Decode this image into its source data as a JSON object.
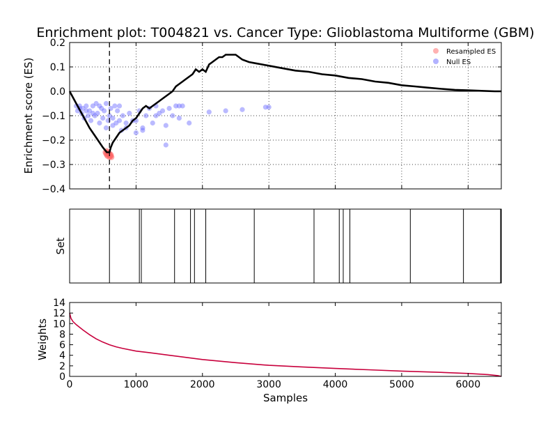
{
  "title": "Enrichment plot: T004821 vs. Cancer Type: Glioblastoma Multiforme (GBM)",
  "colors": {
    "running_es": "#000000",
    "resampled": "#ff6666",
    "null": "#6666ff",
    "weights": "#c8003c",
    "leading_edge": "#000000"
  },
  "chart_data": [
    {
      "type": "line",
      "panel": "enrichment",
      "ylabel": "Enrichment score (ES)",
      "xlim": [
        0,
        6500
      ],
      "ylim": [
        -0.4,
        0.2
      ],
      "yticks": [
        -0.4,
        -0.3,
        -0.2,
        -0.1,
        0.0,
        0.1,
        0.2
      ],
      "ytick_labels": [
        "−0.4",
        "−0.3",
        "−0.2",
        "−0.1",
        "0.0",
        "0.1",
        "0.2"
      ],
      "xticks": [
        1000,
        2000,
        3000,
        4000,
        5000,
        6000
      ],
      "grid": true,
      "leading_edge_x": 600,
      "legend": {
        "position": "top-right",
        "entries": [
          "Resampled ES",
          "Null ES"
        ]
      },
      "running_es": {
        "x": [
          0,
          100,
          200,
          300,
          400,
          500,
          560,
          600,
          620,
          650,
          700,
          750,
          800,
          850,
          900,
          950,
          1000,
          1050,
          1100,
          1150,
          1200,
          1250,
          1300,
          1350,
          1400,
          1450,
          1500,
          1550,
          1600,
          1650,
          1700,
          1750,
          1800,
          1850,
          1900,
          1950,
          2000,
          2050,
          2100,
          2150,
          2200,
          2250,
          2300,
          2350,
          2400,
          2450,
          2500,
          2600,
          2700,
          2800,
          2900,
          3000,
          3200,
          3400,
          3600,
          3800,
          4000,
          4200,
          4400,
          4600,
          4800,
          5000,
          5200,
          5400,
          5600,
          5800,
          6000,
          6200,
          6400,
          6500
        ],
        "y": [
          0.0,
          -0.05,
          -0.1,
          -0.15,
          -0.19,
          -0.23,
          -0.25,
          -0.25,
          -0.23,
          -0.21,
          -0.19,
          -0.17,
          -0.16,
          -0.15,
          -0.14,
          -0.12,
          -0.11,
          -0.09,
          -0.07,
          -0.06,
          -0.07,
          -0.06,
          -0.05,
          -0.04,
          -0.03,
          -0.02,
          -0.01,
          0.0,
          0.02,
          0.03,
          0.04,
          0.05,
          0.06,
          0.07,
          0.09,
          0.08,
          0.09,
          0.08,
          0.11,
          0.12,
          0.13,
          0.14,
          0.14,
          0.15,
          0.15,
          0.15,
          0.15,
          0.13,
          0.12,
          0.115,
          0.11,
          0.105,
          0.095,
          0.085,
          0.08,
          0.07,
          0.065,
          0.055,
          0.05,
          0.04,
          0.035,
          0.025,
          0.02,
          0.015,
          0.01,
          0.006,
          0.004,
          0.002,
          0.0,
          0.0
        ]
      },
      "resampled_es": {
        "x": [
          540,
          550,
          560,
          570,
          580,
          590,
          600,
          610,
          620,
          630,
          560,
          580,
          600,
          620
        ],
        "y": [
          -0.25,
          -0.255,
          -0.26,
          -0.265,
          -0.255,
          -0.26,
          -0.27,
          -0.265,
          -0.26,
          -0.27,
          -0.245,
          -0.25,
          -0.255,
          -0.265
        ]
      },
      "null_es": {
        "x": [
          100,
          120,
          150,
          180,
          200,
          220,
          250,
          280,
          300,
          320,
          350,
          380,
          400,
          420,
          450,
          480,
          500,
          520,
          550,
          580,
          600,
          620,
          650,
          680,
          700,
          720,
          750,
          780,
          800,
          850,
          900,
          950,
          1000,
          1050,
          1100,
          1150,
          1200,
          1250,
          1300,
          1350,
          1400,
          1450,
          1500,
          1550,
          1600,
          1650,
          1700,
          1800,
          2100,
          2350,
          2600,
          2950,
          3000,
          150,
          250,
          350,
          450,
          550,
          650,
          750,
          850,
          1000,
          1100,
          1300,
          1450,
          1650
        ],
        "y": [
          -0.06,
          -0.08,
          -0.06,
          -0.09,
          -0.07,
          -0.11,
          -0.06,
          -0.1,
          -0.08,
          -0.12,
          -0.06,
          -0.1,
          -0.05,
          -0.09,
          -0.13,
          -0.07,
          -0.11,
          -0.08,
          -0.05,
          -0.12,
          -0.1,
          -0.07,
          -0.14,
          -0.06,
          -0.13,
          -0.08,
          -0.12,
          -0.16,
          -0.1,
          -0.15,
          -0.09,
          -0.12,
          -0.17,
          -0.08,
          -0.15,
          -0.1,
          -0.07,
          -0.13,
          -0.06,
          -0.09,
          -0.08,
          -0.22,
          -0.07,
          -0.1,
          -0.06,
          -0.11,
          -0.06,
          -0.13,
          -0.085,
          -0.08,
          -0.075,
          -0.065,
          -0.065,
          -0.07,
          -0.08,
          -0.09,
          -0.06,
          -0.15,
          -0.11,
          -0.06,
          -0.13,
          -0.12,
          -0.16,
          -0.1,
          -0.14,
          -0.06
        ]
      }
    },
    {
      "type": "barcode",
      "panel": "set",
      "ylabel": "Set",
      "xlim": [
        0,
        6500
      ],
      "hits": [
        600,
        1050,
        1080,
        1580,
        1820,
        1880,
        2050,
        2780,
        3680,
        4060,
        4120,
        4220,
        5130,
        5930,
        6490
      ]
    },
    {
      "type": "line",
      "panel": "weights",
      "ylabel": "Weights",
      "xlabel": "Samples",
      "xlim": [
        0,
        6500
      ],
      "ylim": [
        0,
        14
      ],
      "yticks": [
        0,
        2,
        4,
        6,
        8,
        10,
        12,
        14
      ],
      "xticks": [
        0,
        1000,
        2000,
        3000,
        4000,
        5000,
        6000
      ],
      "x": [
        0,
        20,
        50,
        100,
        200,
        300,
        400,
        500,
        600,
        700,
        800,
        1000,
        1200,
        1500,
        2000,
        2500,
        3000,
        3500,
        4000,
        4500,
        5000,
        5500,
        6000,
        6300,
        6450,
        6500
      ],
      "y": [
        12.0,
        11.0,
        10.4,
        9.8,
        8.8,
        7.9,
        7.1,
        6.5,
        6.0,
        5.6,
        5.3,
        4.8,
        4.5,
        4.0,
        3.2,
        2.6,
        2.1,
        1.8,
        1.5,
        1.25,
        1.0,
        0.8,
        0.55,
        0.35,
        0.15,
        0.0
      ]
    }
  ]
}
